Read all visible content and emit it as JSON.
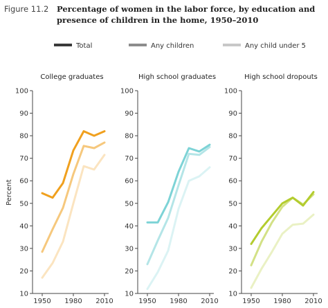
{
  "figure": {
    "label": "Figure 11.2",
    "title_line1": "Percentage of women in the labor force, by education and",
    "title_line2": "presence of children in the home, 1950–2010"
  },
  "legend": [
    {
      "label": "Total",
      "shade": "dark"
    },
    {
      "label": "Any children",
      "shade": "mid"
    },
    {
      "label": "Any child under 5",
      "shade": "light"
    }
  ],
  "ylabel": "Percent",
  "chart_data": [
    {
      "type": "line",
      "title": "College graduates",
      "color": "#f0a01e",
      "x": [
        1950,
        1960,
        1970,
        1980,
        1990,
        2000,
        2010
      ],
      "xticks": [
        1950,
        1980,
        2010
      ],
      "ylim": [
        10,
        100
      ],
      "yticks": [
        10,
        20,
        30,
        40,
        50,
        60,
        70,
        80,
        90,
        100
      ],
      "series": [
        {
          "name": "Total",
          "values": [
            54.5,
            52.5,
            59,
            73.5,
            82,
            80,
            82
          ]
        },
        {
          "name": "Any children",
          "values": [
            28.5,
            38.5,
            48,
            63,
            75.5,
            74.5,
            77
          ]
        },
        {
          "name": "Any child under 5",
          "values": [
            17,
            23.5,
            33,
            50,
            66.5,
            65,
            71.5
          ]
        }
      ]
    },
    {
      "type": "line",
      "title": "High school graduates",
      "color": "#7dd3d6",
      "x": [
        1950,
        1960,
        1970,
        1980,
        1990,
        2000,
        2010
      ],
      "xticks": [
        1950,
        1980,
        2010
      ],
      "ylim": [
        10,
        100
      ],
      "yticks": [
        10,
        20,
        30,
        40,
        50,
        60,
        70,
        80,
        90,
        100
      ],
      "series": [
        {
          "name": "Total",
          "values": [
            41.5,
            41.5,
            50.5,
            64,
            74.5,
            73,
            76
          ]
        },
        {
          "name": "Any children",
          "values": [
            23,
            33.5,
            43.5,
            58,
            72,
            71.5,
            75
          ]
        },
        {
          "name": "Any child under 5",
          "values": [
            12,
            19.5,
            29,
            47.5,
            60,
            62,
            66
          ]
        }
      ]
    },
    {
      "type": "line",
      "title": "High school dropouts",
      "color": "#b3cc2e",
      "x": [
        1950,
        1960,
        1970,
        1980,
        1990,
        2000,
        2010
      ],
      "xticks": [
        1950,
        1980,
        2010
      ],
      "ylim": [
        10,
        100
      ],
      "yticks": [
        10,
        20,
        30,
        40,
        50,
        60,
        70,
        80,
        90,
        100
      ],
      "series": [
        {
          "name": "Total",
          "values": [
            32,
            39,
            44.5,
            50,
            52.5,
            49,
            55
          ]
        },
        {
          "name": "Any children",
          "values": [
            22.5,
            33,
            41.5,
            48.5,
            52.5,
            49.5,
            54
          ]
        },
        {
          "name": "Any child under 5",
          "values": [
            12.5,
            21,
            28.5,
            36.5,
            40.5,
            41,
            45
          ]
        }
      ]
    }
  ]
}
